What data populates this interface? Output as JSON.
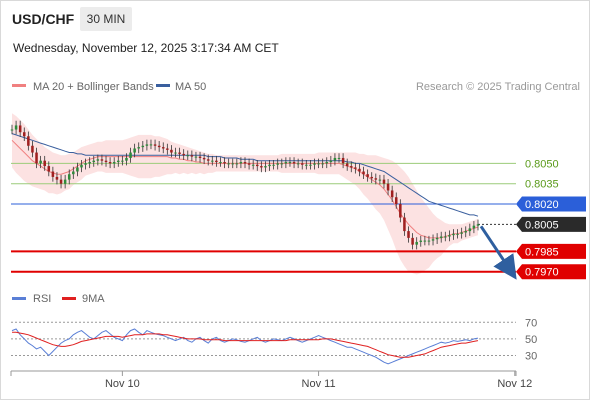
{
  "header": {
    "symbol": "USD/CHF",
    "timeframe": "30 MIN",
    "datetime": "Wednesday, November 12, 2025 3:17:34 AM CET"
  },
  "legend": {
    "ma20": "MA 20 + Bollinger Bands",
    "ma50": "MA 50",
    "source": "Research © 2025 Trading Central",
    "rsi": "RSI",
    "rsi9": "9MA"
  },
  "colors": {
    "ma20": "#f08080",
    "band": "#fbd8d8",
    "ma50": "#3a5f9e",
    "up": "#2e8b3a",
    "down": "#a02020",
    "resistance": "#9ccc7a",
    "pivot": "#2b5fd9",
    "support": "#e00000",
    "arrow": "#2f5f9f",
    "rsi": "#5a7fd6",
    "rsi_ma": "#e02020"
  },
  "chart_data": [
    {
      "type": "candlestick",
      "series_names": [
        "MA 20 + Bollinger Bands",
        "MA 50"
      ],
      "ylim": [
        0.7958,
        0.8099
      ],
      "x_ticks": [
        {
          "label": "Nov 10",
          "index": 27
        },
        {
          "label": "Nov 11",
          "index": 75
        },
        {
          "label": "Nov 12",
          "index": 123
        }
      ],
      "levels": [
        {
          "label": "0.8050",
          "value": 0.805,
          "kind": "resistance"
        },
        {
          "label": "0.8035",
          "value": 0.8035,
          "kind": "resistance"
        },
        {
          "label": "0.8020",
          "value": 0.802,
          "kind": "pivot"
        },
        {
          "label": "0.7985",
          "value": 0.7985,
          "kind": "support"
        },
        {
          "label": "0.7970",
          "value": 0.797,
          "kind": "support"
        }
      ],
      "last_price": {
        "label": "0.8005",
        "value": 0.8005
      },
      "close": [
        0.8075,
        0.8078,
        0.8073,
        0.807,
        0.8063,
        0.8058,
        0.805,
        0.8052,
        0.8048,
        0.8044,
        0.804,
        0.8038,
        0.8035,
        0.8038,
        0.8042,
        0.8044,
        0.8047,
        0.8049,
        0.805,
        0.8051,
        0.8052,
        0.8053,
        0.8052,
        0.8051,
        0.805,
        0.8051,
        0.8052,
        0.8052,
        0.8054,
        0.8058,
        0.8061,
        0.8062,
        0.8063,
        0.8064,
        0.8064,
        0.8063,
        0.8062,
        0.8061,
        0.806,
        0.8058,
        0.8058,
        0.8057,
        0.8056,
        0.8056,
        0.8055,
        0.8055,
        0.8054,
        0.8053,
        0.8052,
        0.8052,
        0.8051,
        0.8051,
        0.805,
        0.805,
        0.805,
        0.805,
        0.8051,
        0.805,
        0.8049,
        0.8049,
        0.8048,
        0.8047,
        0.8048,
        0.8049,
        0.8049,
        0.805,
        0.805,
        0.8051,
        0.8051,
        0.805,
        0.805,
        0.8049,
        0.8049,
        0.8049,
        0.805,
        0.805,
        0.805,
        0.8051,
        0.8052,
        0.8054,
        0.8054,
        0.805,
        0.8048,
        0.8047,
        0.8046,
        0.8044,
        0.8042,
        0.804,
        0.8039,
        0.8038,
        0.8038,
        0.8035,
        0.803,
        0.8025,
        0.802,
        0.801,
        0.8,
        0.7995,
        0.799,
        0.7992,
        0.7993,
        0.7993,
        0.7993,
        0.7994,
        0.7995,
        0.7996,
        0.7996,
        0.7997,
        0.7998,
        0.7998,
        0.7999,
        0.8,
        0.8002,
        0.8004,
        0.8005
      ],
      "ma20": [
        0.8067,
        0.8064,
        0.8061,
        0.8058,
        0.8055,
        0.8052,
        0.805,
        0.8048,
        0.8046,
        0.8044,
        0.8043,
        0.8042,
        0.8042,
        0.8043,
        0.8044,
        0.8046,
        0.8048,
        0.805,
        0.8052,
        0.8053,
        0.8054,
        0.8055,
        0.8055,
        0.8055,
        0.8055,
        0.8055,
        0.8055,
        0.8055,
        0.8055,
        0.8055,
        0.8055,
        0.8055,
        0.8055,
        0.8055,
        0.8055,
        0.8055,
        0.8055,
        0.8055,
        0.8055,
        0.8054,
        0.8054,
        0.8053,
        0.8053,
        0.8052,
        0.8052,
        0.8051,
        0.8051,
        0.805,
        0.805,
        0.805,
        0.805,
        0.805,
        0.805,
        0.805,
        0.805,
        0.805,
        0.805,
        0.805,
        0.805,
        0.805,
        0.805,
        0.805,
        0.805,
        0.805,
        0.805,
        0.805,
        0.805,
        0.805,
        0.805,
        0.805,
        0.805,
        0.805,
        0.805,
        0.805,
        0.805,
        0.805,
        0.805,
        0.805,
        0.805,
        0.805,
        0.805,
        0.8049,
        0.8048,
        0.8047,
        0.8046,
        0.8044,
        0.8042,
        0.804,
        0.8038,
        0.8036,
        0.8034,
        0.8031,
        0.8027,
        0.8023,
        0.8018,
        0.8013,
        0.8009,
        0.8005,
        0.8002,
        0.7999,
        0.7997,
        0.7996,
        0.7995,
        0.7995,
        0.7995,
        0.7995,
        0.7996,
        0.7997,
        0.7998,
        0.7998,
        0.7999,
        0.8,
        0.8001,
        0.8002,
        0.8003
      ],
      "bb_upper": [
        0.8087,
        0.8085,
        0.8082,
        0.8079,
        0.8075,
        0.8071,
        0.8068,
        0.8065,
        0.8062,
        0.806,
        0.8058,
        0.8057,
        0.8056,
        0.8056,
        0.8057,
        0.8058,
        0.806,
        0.8062,
        0.8063,
        0.8064,
        0.8065,
        0.8066,
        0.8066,
        0.8067,
        0.8067,
        0.8067,
        0.8067,
        0.8067,
        0.8068,
        0.8069,
        0.807,
        0.8071,
        0.8071,
        0.8071,
        0.8071,
        0.807,
        0.807,
        0.8069,
        0.8068,
        0.8066,
        0.8065,
        0.8064,
        0.8063,
        0.8062,
        0.8061,
        0.806,
        0.8059,
        0.8058,
        0.8057,
        0.8057,
        0.8056,
        0.8056,
        0.8056,
        0.8056,
        0.8056,
        0.8056,
        0.8056,
        0.8056,
        0.8056,
        0.8056,
        0.8056,
        0.8056,
        0.8056,
        0.8056,
        0.8056,
        0.8056,
        0.8057,
        0.8057,
        0.8057,
        0.8057,
        0.8057,
        0.8057,
        0.8057,
        0.8057,
        0.8057,
        0.8058,
        0.8058,
        0.8058,
        0.8058,
        0.8058,
        0.8058,
        0.8058,
        0.8058,
        0.8058,
        0.8058,
        0.8057,
        0.8057,
        0.8056,
        0.8056,
        0.8056,
        0.8055,
        0.8054,
        0.8053,
        0.8052,
        0.805,
        0.8047,
        0.8044,
        0.804,
        0.8035,
        0.803,
        0.8025,
        0.8021,
        0.8017,
        0.8013,
        0.801,
        0.8008,
        0.8006,
        0.8005,
        0.8005,
        0.8005,
        0.8005,
        0.8006,
        0.8007,
        0.8008,
        0.8009
      ],
      "bb_lower": [
        0.8047,
        0.8043,
        0.804,
        0.8037,
        0.8035,
        0.8033,
        0.8032,
        0.8031,
        0.803,
        0.8028,
        0.8028,
        0.8027,
        0.8028,
        0.803,
        0.8031,
        0.8034,
        0.8036,
        0.8038,
        0.8041,
        0.8042,
        0.8043,
        0.8044,
        0.8044,
        0.8043,
        0.8043,
        0.8043,
        0.8043,
        0.8043,
        0.8042,
        0.8041,
        0.804,
        0.8039,
        0.8039,
        0.8039,
        0.8039,
        0.804,
        0.804,
        0.8041,
        0.8042,
        0.8042,
        0.8043,
        0.8042,
        0.8043,
        0.8042,
        0.8043,
        0.8042,
        0.8043,
        0.8042,
        0.8043,
        0.8043,
        0.8044,
        0.8044,
        0.8044,
        0.8044,
        0.8044,
        0.8044,
        0.8044,
        0.8044,
        0.8044,
        0.8044,
        0.8044,
        0.8044,
        0.8044,
        0.8044,
        0.8044,
        0.8044,
        0.8043,
        0.8043,
        0.8043,
        0.8043,
        0.8043,
        0.8043,
        0.8043,
        0.8043,
        0.8043,
        0.8042,
        0.8042,
        0.8042,
        0.8042,
        0.8042,
        0.8042,
        0.804,
        0.8038,
        0.8036,
        0.8034,
        0.8031,
        0.8027,
        0.8024,
        0.802,
        0.8016,
        0.8013,
        0.8008,
        0.8001,
        0.7994,
        0.7986,
        0.7979,
        0.7974,
        0.797,
        0.7969,
        0.7968,
        0.7969,
        0.7971,
        0.7973,
        0.7977,
        0.798,
        0.7982,
        0.7986,
        0.7989,
        0.7991,
        0.7991,
        0.7993,
        0.7994,
        0.7995,
        0.7996,
        0.7997
      ],
      "ma50": [
        0.8072,
        0.8071,
        0.807,
        0.8069,
        0.8068,
        0.8067,
        0.8066,
        0.8065,
        0.8064,
        0.8063,
        0.8062,
        0.8061,
        0.806,
        0.8059,
        0.8058,
        0.8058,
        0.8057,
        0.8057,
        0.8056,
        0.8056,
        0.8056,
        0.8056,
        0.8056,
        0.8056,
        0.8056,
        0.8056,
        0.8056,
        0.8056,
        0.8056,
        0.8056,
        0.8056,
        0.8056,
        0.8056,
        0.8056,
        0.8056,
        0.8056,
        0.8056,
        0.8056,
        0.8056,
        0.8056,
        0.8056,
        0.8056,
        0.8056,
        0.8056,
        0.8056,
        0.8056,
        0.8056,
        0.8056,
        0.8055,
        0.8055,
        0.8055,
        0.8055,
        0.8054,
        0.8054,
        0.8054,
        0.8054,
        0.8053,
        0.8053,
        0.8053,
        0.8053,
        0.8052,
        0.8052,
        0.8052,
        0.8052,
        0.8052,
        0.8052,
        0.8052,
        0.8052,
        0.8052,
        0.8052,
        0.8052,
        0.8052,
        0.8052,
        0.8052,
        0.8052,
        0.8052,
        0.8052,
        0.8052,
        0.8052,
        0.8052,
        0.8052,
        0.8052,
        0.8051,
        0.8051,
        0.805,
        0.805,
        0.8049,
        0.8048,
        0.8047,
        0.8046,
        0.8045,
        0.8044,
        0.8042,
        0.804,
        0.8038,
        0.8036,
        0.8034,
        0.8032,
        0.803,
        0.8028,
        0.8026,
        0.8024,
        0.8022,
        0.8021,
        0.802,
        0.8019,
        0.8018,
        0.8017,
        0.8016,
        0.8015,
        0.8014,
        0.8013,
        0.8012,
        0.8012,
        0.8011
      ]
    },
    {
      "type": "line",
      "series_names": [
        "RSI",
        "9MA"
      ],
      "ylim": [
        15,
        80
      ],
      "y_ticks": [
        70,
        50,
        30
      ],
      "rsi": [
        60,
        62,
        55,
        50,
        45,
        42,
        38,
        40,
        35,
        30,
        35,
        40,
        45,
        48,
        50,
        55,
        58,
        60,
        56,
        52,
        50,
        54,
        58,
        60,
        56,
        52,
        50,
        48,
        55,
        60,
        62,
        58,
        55,
        60,
        58,
        56,
        55,
        54,
        52,
        50,
        48,
        50,
        52,
        48,
        46,
        50,
        52,
        48,
        45,
        50,
        52,
        48,
        46,
        48,
        50,
        49,
        47,
        46,
        48,
        50,
        52,
        48,
        46,
        48,
        50,
        49,
        48,
        50,
        52,
        50,
        48,
        46,
        48,
        50,
        52,
        54,
        52,
        50,
        48,
        46,
        44,
        42,
        40,
        40,
        38,
        36,
        34,
        32,
        30,
        28,
        25,
        22,
        20,
        22,
        24,
        26,
        28,
        30,
        32,
        34,
        36,
        38,
        40,
        42,
        44,
        46,
        45,
        46,
        48,
        47,
        48,
        49,
        48,
        50,
        51
      ],
      "rsi_ma": [
        58,
        58,
        57,
        56,
        55,
        53,
        51,
        49,
        47,
        45,
        43,
        42,
        41,
        41,
        42,
        43,
        45,
        47,
        48,
        49,
        50,
        51,
        52,
        53,
        53,
        53,
        53,
        52,
        53,
        54,
        55,
        55,
        55,
        56,
        56,
        56,
        56,
        55,
        55,
        54,
        53,
        52,
        51,
        50,
        50,
        50,
        50,
        49,
        49,
        49,
        49,
        49,
        48,
        48,
        48,
        48,
        48,
        48,
        48,
        48,
        48,
        48,
        48,
        48,
        48,
        48,
        48,
        48,
        49,
        49,
        49,
        49,
        49,
        49,
        49,
        49,
        50,
        50,
        50,
        49,
        48,
        47,
        46,
        45,
        44,
        43,
        42,
        41,
        39,
        37,
        35,
        33,
        31,
        30,
        29,
        28,
        28,
        28,
        29,
        30,
        31,
        32,
        34,
        36,
        38,
        40,
        41,
        42,
        43,
        44,
        45,
        45,
        46,
        47,
        48
      ]
    }
  ]
}
